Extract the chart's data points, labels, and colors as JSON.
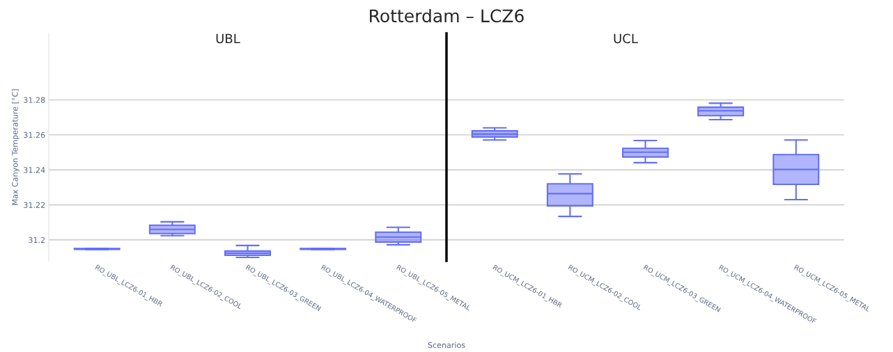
{
  "chart_data": [
    {
      "type": "box",
      "title": "Rotterdam – LCZ6",
      "subtitle": "UBL",
      "xlabel": "Scenarios",
      "ylabel": "Max Canyon Temperature [°C]",
      "categories": [
        "RO_UBL_LCZ6-01_HBR",
        "RO_UBL_LCZ6-02_COOL",
        "RO_UBL_LCZ6-03_GREEN",
        "RO_UBL_LCZ6-04_WATERPROOF",
        "RO_UBL_LCZ6-05_METAL"
      ],
      "series": [
        {
          "color": "#636efa",
          "boxes": [
            {
              "low": 31.1945,
              "q1": 31.1946,
              "median": 31.1948,
              "q3": 31.195,
              "high": 31.1951
            },
            {
              "low": 31.2024,
              "q1": 31.2036,
              "median": 31.206,
              "q3": 31.2084,
              "high": 31.2103
            },
            {
              "low": 31.19,
              "q1": 31.1912,
              "median": 31.1924,
              "q3": 31.1936,
              "high": 31.1968
            },
            {
              "low": 31.1945,
              "q1": 31.1946,
              "median": 31.1948,
              "q3": 31.195,
              "high": 31.1951
            },
            {
              "low": 31.1972,
              "q1": 31.1988,
              "median": 31.2016,
              "q3": 31.2044,
              "high": 31.2072
            }
          ]
        }
      ],
      "ylim": [
        31.188,
        31.318
      ],
      "yticks": [
        31.2,
        31.22,
        31.24,
        31.26,
        31.28
      ],
      "grid": "y"
    },
    {
      "type": "box",
      "subtitle": "UCL",
      "categories": [
        "RO_UCM_LCZ6-01_HBR",
        "RO_UCM_LCZ6-02_COOL",
        "RO_UCM_LCZ6-03_GREEN",
        "RO_UCM_LCZ6-04_WATERPROOF",
        "RO_UCM_LCZ6-05_METAL"
      ],
      "series": [
        {
          "color": "#636efa",
          "boxes": [
            {
              "low": 31.2571,
              "q1": 31.2588,
              "median": 31.2605,
              "q3": 31.2623,
              "high": 31.264
            },
            {
              "low": 31.2134,
              "q1": 31.2194,
              "median": 31.2264,
              "q3": 31.232,
              "high": 31.2377
            },
            {
              "low": 31.2441,
              "q1": 31.2474,
              "median": 31.2501,
              "q3": 31.2523,
              "high": 31.2568
            },
            {
              "low": 31.2687,
              "q1": 31.271,
              "median": 31.2738,
              "q3": 31.2758,
              "high": 31.2781
            },
            {
              "low": 31.223,
              "q1": 31.2317,
              "median": 31.2403,
              "q3": 31.2487,
              "high": 31.2571
            }
          ]
        }
      ],
      "ylim": [
        31.188,
        31.318
      ],
      "yticks": [
        31.2,
        31.22,
        31.24,
        31.26,
        31.28
      ],
      "grid": "y",
      "tick_labels": "x"
    }
  ]
}
